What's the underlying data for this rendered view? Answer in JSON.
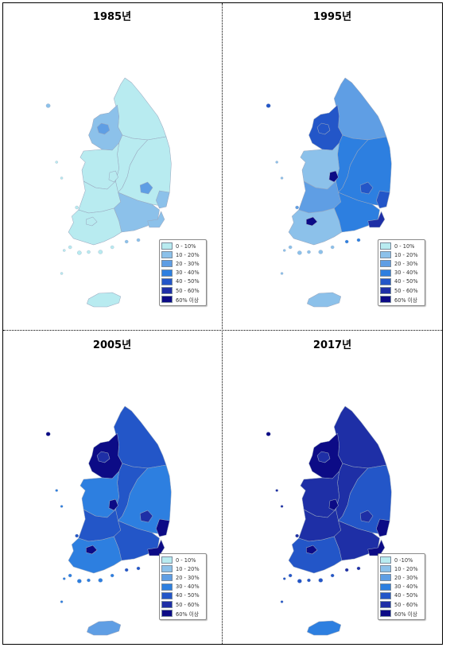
{
  "palette": [
    "#b8ebf0",
    "#8cc1ea",
    "#5f9ee4",
    "#2d7fe0",
    "#2356c8",
    "#1e2fa6",
    "#0c0b86"
  ],
  "legend_labels_default": [
    "0 - 10%",
    "10 - 20%",
    "20 - 30%",
    "30 - 40%",
    "40 - 50%",
    "50 - 60%",
    "60% 이상"
  ],
  "legend_labels_2017": [
    "0 -10%",
    "10 - 20%",
    "20 - 30%",
    "30 - 40%",
    "40 - 50%",
    "50 - 60%",
    "60% 이상"
  ],
  "panels": [
    {
      "title": "1985년",
      "regions": {
        "gyeonggi": 1,
        "seoul": 2,
        "gangwon": 0,
        "chungnam": 0,
        "chungbuk": 0,
        "daejeon": 0,
        "jeonbuk": 0,
        "gwangju": 0,
        "jeonnam": 0,
        "gyeongbuk": 0,
        "daegu": 2,
        "gyeongnam": 1,
        "ulsan": 1,
        "busan": 1,
        "jeju": 0
      }
    },
    {
      "title": "1995년",
      "regions": {
        "gyeonggi": 4,
        "seoul": 4,
        "gangwon": 2,
        "chungnam": 1,
        "chungbuk": 3,
        "daejeon": 6,
        "jeonbuk": 2,
        "gwangju": 6,
        "jeonnam": 1,
        "gyeongbuk": 3,
        "daegu": 4,
        "gyeongnam": 3,
        "ulsan": 4,
        "busan": 5,
        "jeju": 1
      }
    },
    {
      "title": "2005년",
      "regions": {
        "gyeonggi": 6,
        "seoul": 5,
        "gangwon": 4,
        "chungnam": 3,
        "chungbuk": 4,
        "daejeon": 6,
        "jeonbuk": 4,
        "gwangju": 6,
        "jeonnam": 3,
        "gyeongbuk": 3,
        "daegu": 5,
        "gyeongnam": 4,
        "ulsan": 6,
        "busan": 6,
        "jeju": 2
      }
    },
    {
      "title": "2017년",
      "regions": {
        "gyeonggi": 6,
        "seoul": 5,
        "gangwon": 5,
        "chungnam": 5,
        "chungbuk": 5,
        "daejeon": 6,
        "jeonbuk": 5,
        "gwangju": 6,
        "jeonnam": 4,
        "gyeongbuk": 4,
        "daegu": 5,
        "gyeongnam": 5,
        "ulsan": 6,
        "busan": 6,
        "jeju": 3
      }
    }
  ]
}
